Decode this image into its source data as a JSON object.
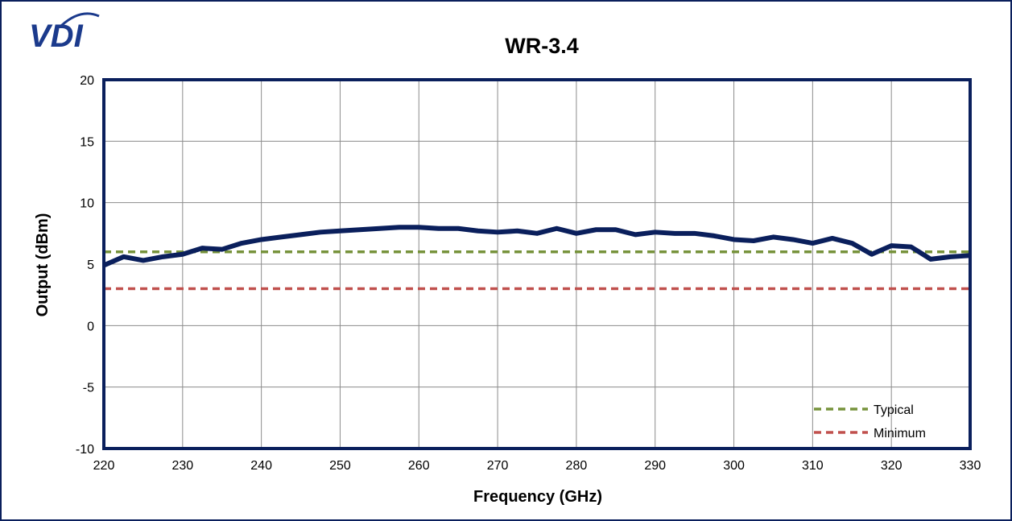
{
  "logo": {
    "text": "VDI",
    "color": "#1b3a8c"
  },
  "chart_data": {
    "type": "line",
    "title": "WR-3.4",
    "xlabel": "Frequency (GHz)",
    "ylabel": "Output (dBm)",
    "xlim": [
      220,
      330
    ],
    "ylim": [
      -10,
      20
    ],
    "xticks": [
      220,
      230,
      240,
      250,
      260,
      270,
      280,
      290,
      300,
      310,
      320,
      330
    ],
    "yticks": [
      -10,
      -5,
      0,
      5,
      10,
      15,
      20
    ],
    "grid": true,
    "legend_position": "bottom-right",
    "series": [
      {
        "color": "#0a1f5c",
        "style": "solid",
        "x": [
          220,
          222.5,
          225,
          227.5,
          230,
          232.5,
          235,
          237.5,
          240,
          242.5,
          245,
          247.5,
          250,
          252.5,
          255,
          257.5,
          260,
          262.5,
          265,
          267.5,
          270,
          272.5,
          275,
          277.5,
          280,
          282.5,
          285,
          287.5,
          290,
          292.5,
          295,
          297.5,
          300,
          302.5,
          305,
          307.5,
          310,
          312.5,
          315,
          317.5,
          320,
          322.5,
          325,
          327.5,
          330
        ],
        "y": [
          4.9,
          5.6,
          5.3,
          5.6,
          5.8,
          6.3,
          6.2,
          6.7,
          7.0,
          7.2,
          7.4,
          7.6,
          7.7,
          7.8,
          7.9,
          8.0,
          8.0,
          7.9,
          7.9,
          7.7,
          7.6,
          7.7,
          7.5,
          7.9,
          7.5,
          7.8,
          7.8,
          7.4,
          7.6,
          7.5,
          7.5,
          7.3,
          7.0,
          6.9,
          7.2,
          7.0,
          6.7,
          7.1,
          6.7,
          5.8,
          6.5,
          6.4,
          5.4,
          5.6,
          5.7
        ]
      },
      {
        "name": "Typical",
        "color": "#77933c",
        "style": "dashed",
        "x": [
          220,
          330
        ],
        "y": [
          6,
          6
        ]
      },
      {
        "name": "Minimum",
        "color": "#c0504d",
        "style": "dashed",
        "x": [
          220,
          330
        ],
        "y": [
          3,
          3
        ]
      }
    ]
  }
}
